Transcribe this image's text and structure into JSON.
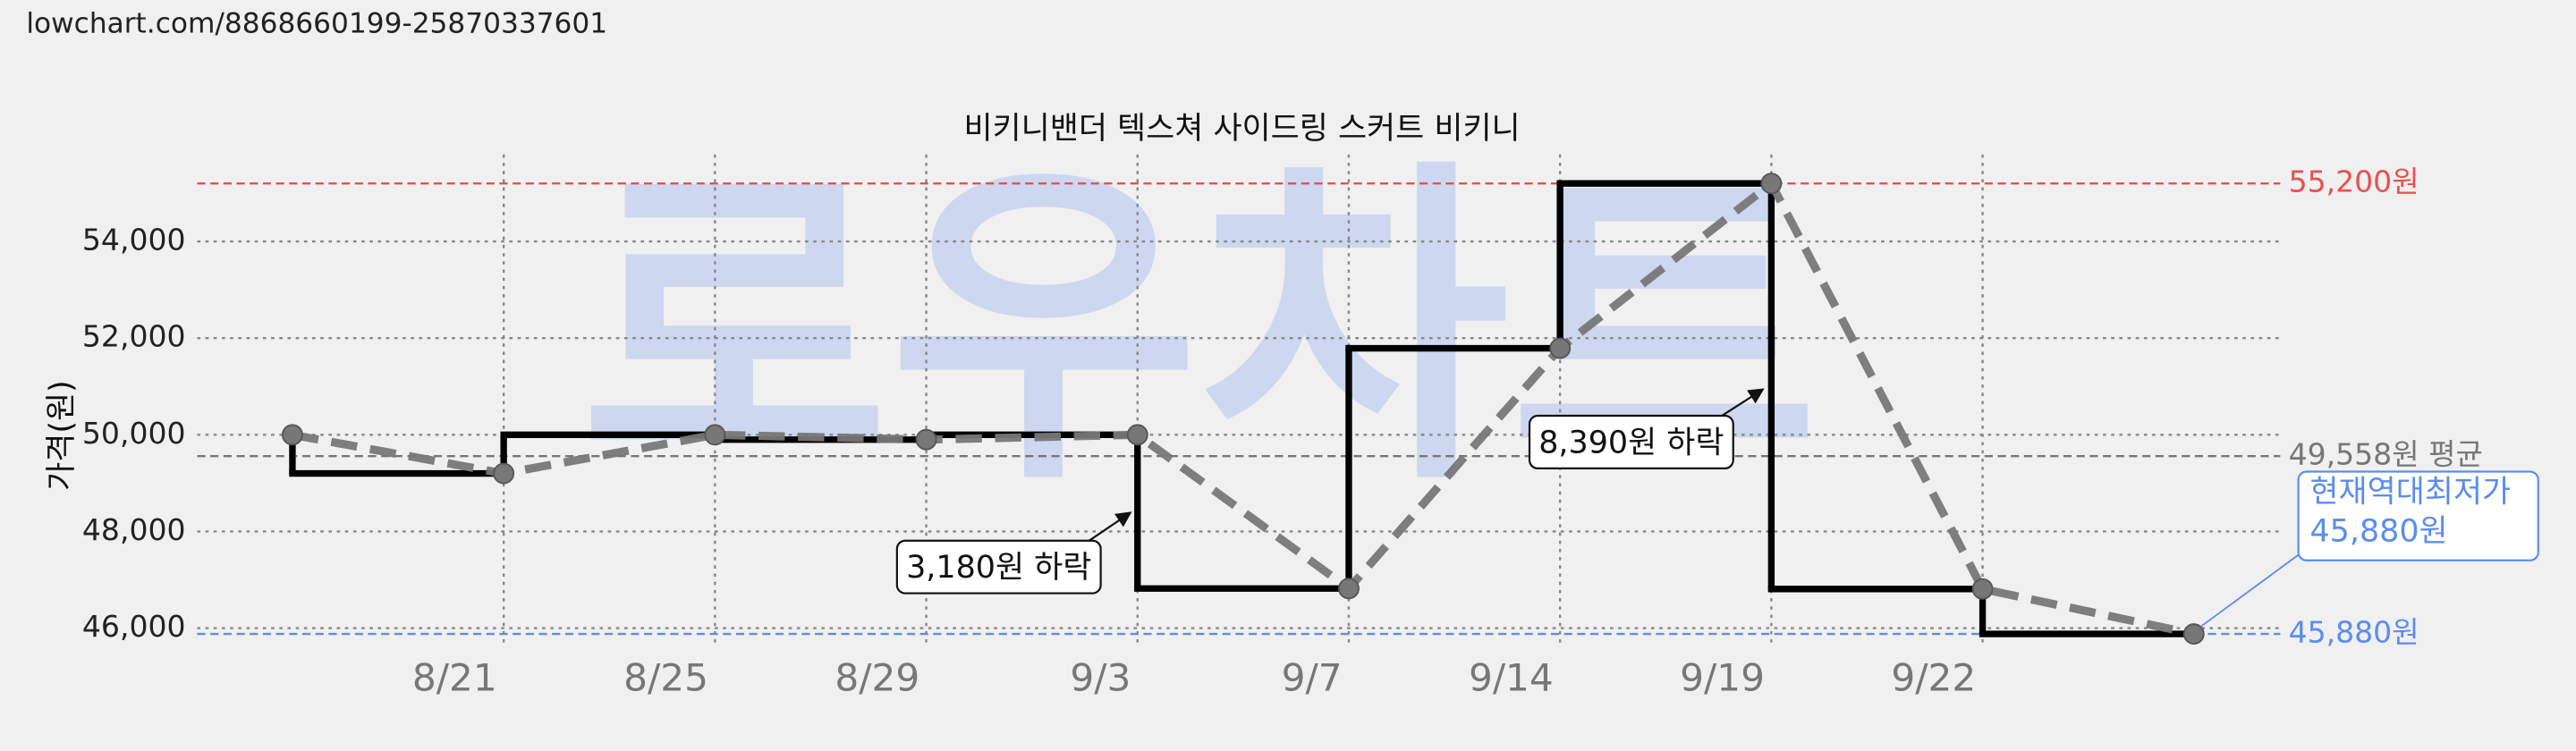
{
  "url": "lowchart.com/8868660199-25870337601",
  "chart_data": {
    "type": "step-line",
    "title": "비키니밴더 텍스쳐 사이드링 스커트 비키니",
    "ylabel": "가격(원)",
    "watermark": "로우차트",
    "categories": [
      null,
      "8/21",
      "8/25",
      "8/29",
      "9/3",
      "9/7",
      "9/14",
      "9/19",
      "9/22",
      null
    ],
    "values": [
      50000,
      49200,
      50000,
      49900,
      50000,
      46820,
      51790,
      55200,
      46810,
      45880
    ],
    "color": "#777777",
    "step_color": "#000000",
    "ylim": [
      45600,
      55800
    ],
    "yticks": [
      {
        "value": 46000,
        "label": "46,000"
      },
      {
        "value": 48000,
        "label": "48,000"
      },
      {
        "value": 50000,
        "label": "50,000"
      },
      {
        "value": 52000,
        "label": "52,000"
      },
      {
        "value": 54000,
        "label": "54,000"
      }
    ],
    "grid": true,
    "ref_lines": [
      {
        "value": 55200,
        "label": "55,200원",
        "color": "#e8504f"
      },
      {
        "value": 49558,
        "label": "49,558원 평균",
        "color": "#777777"
      },
      {
        "value": 45880,
        "label": "45,880원",
        "color": "#5b8def"
      }
    ],
    "annotations": [
      {
        "text": "3,180원 하락"
      },
      {
        "text": "8,390원 하락"
      },
      {
        "lines": [
          "현재역대최저가",
          "45,880원"
        ]
      }
    ]
  }
}
